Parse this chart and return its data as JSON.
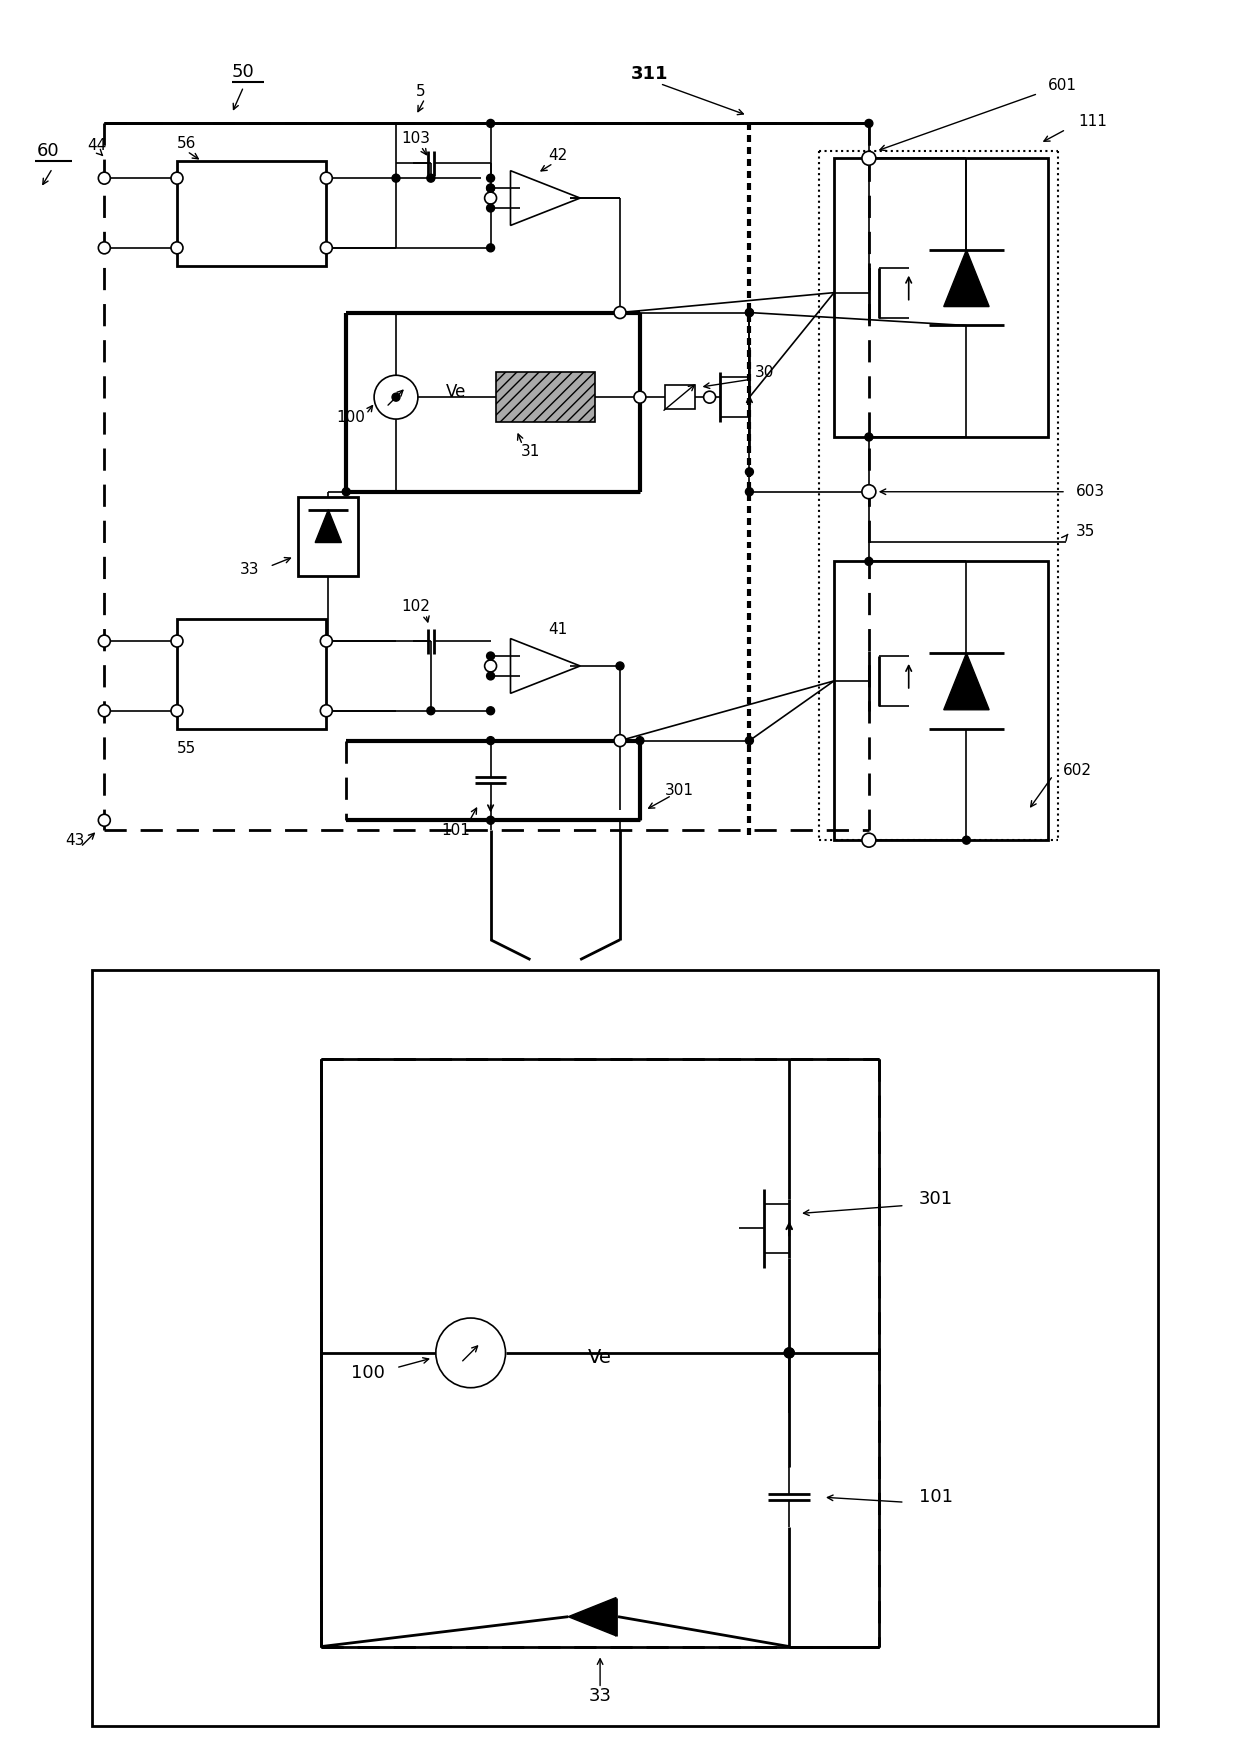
{
  "fig_width": 12.4,
  "fig_height": 17.59,
  "bg_color": "#ffffff",
  "line_color": "#000000"
}
